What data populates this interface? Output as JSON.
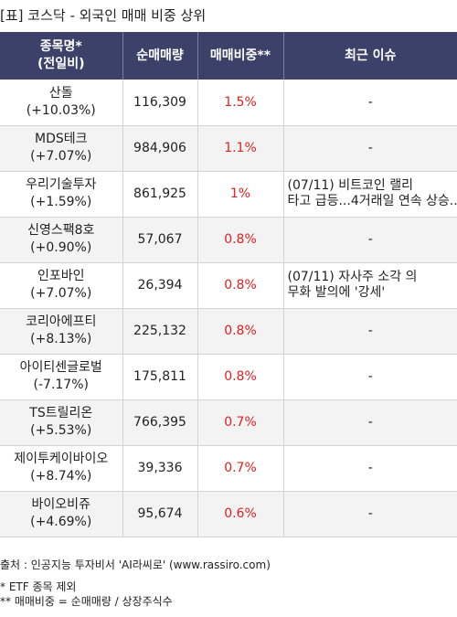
{
  "title": "[표] 코스닥 - 외국인 매매 비중 상위",
  "table": {
    "headers": {
      "name_line1": "종목명*",
      "name_line2": "(전일비)",
      "volume": "순매매량",
      "ratio": "매매비중**",
      "issue": "최근 이슈"
    },
    "rows": [
      {
        "name": "산돌",
        "change": "(+10.03%)",
        "volume": "116,309",
        "ratio": "1.5%",
        "issue_line1": "-",
        "issue_line2": ""
      },
      {
        "name": "MDS테크",
        "change": "(+7.07%)",
        "volume": "984,906",
        "ratio": "1.1%",
        "issue_line1": "-",
        "issue_line2": ""
      },
      {
        "name": "우리기술투자",
        "change": "(+1.59%)",
        "volume": "861,925",
        "ratio": "1%",
        "issue_line1": "(07/11) 비트코인 랠리",
        "issue_line2": "타고 급등...4거래일 연속 상승..."
      },
      {
        "name": "신영스팩8호",
        "change": "(+0.90%)",
        "volume": "57,067",
        "ratio": "0.8%",
        "issue_line1": "-",
        "issue_line2": ""
      },
      {
        "name": "인포바인",
        "change": "(+7.07%)",
        "volume": "26,394",
        "ratio": "0.8%",
        "issue_line1": "(07/11) 자사주 소각 의",
        "issue_line2": "무화 발의에 '강세'"
      },
      {
        "name": "코리아에프티",
        "change": "(+8.13%)",
        "volume": "225,132",
        "ratio": "0.8%",
        "issue_line1": "-",
        "issue_line2": ""
      },
      {
        "name": "아이티센글로벌",
        "change": "(-7.17%)",
        "volume": "175,811",
        "ratio": "0.8%",
        "issue_line1": "-",
        "issue_line2": ""
      },
      {
        "name": "TS트릴리온",
        "change": "(+5.53%)",
        "volume": "766,395",
        "ratio": "0.7%",
        "issue_line1": "-",
        "issue_line2": ""
      },
      {
        "name": "제이투케이바이오",
        "change": "(+8.74%)",
        "volume": "39,336",
        "ratio": "0.7%",
        "issue_line1": "-",
        "issue_line2": ""
      },
      {
        "name": "바이오비쥬",
        "change": "(+4.69%)",
        "volume": "95,674",
        "ratio": "0.6%",
        "issue_line1": "-",
        "issue_line2": ""
      }
    ]
  },
  "footer": {
    "source": "출처 : 인공지능 투자비서 'AI라씨로' (www.rassiro.com)",
    "note1": "* ETF 종목 제외",
    "note2": "** 매매비중 = 순매매량 / 상장주식수"
  },
  "colors": {
    "header_bg": "#3b4169",
    "ratio_text": "#e02020",
    "stripe_bg": "#f3f3f3"
  }
}
